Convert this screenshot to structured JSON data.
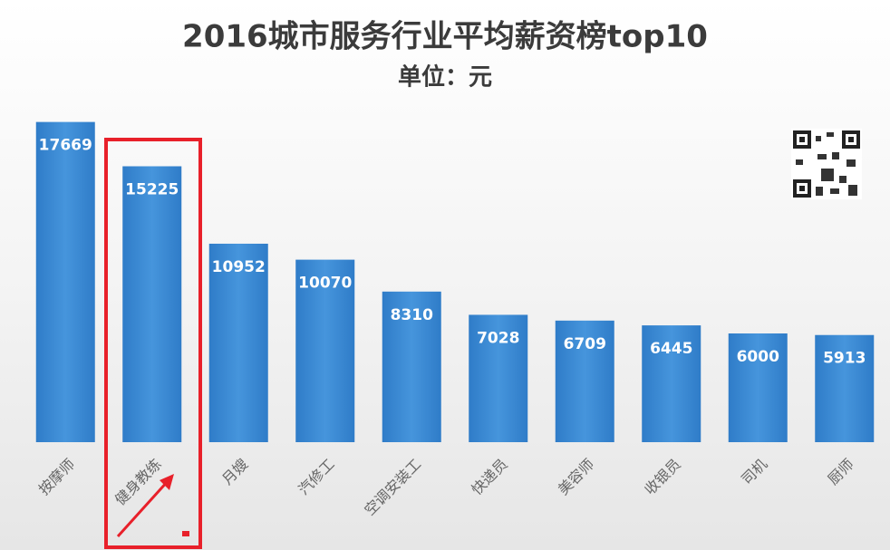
{
  "chart_data": {
    "type": "bar",
    "title": "2016城市服务行业平均薪资榜top10",
    "subtitle": "单位：元",
    "categories": [
      "按摩师",
      "健身教练",
      "月嫂",
      "汽修工",
      "空调安装工",
      "快递员",
      "美容师",
      "收银员",
      "司机",
      "厨师"
    ],
    "values": [
      17669,
      15225,
      10952,
      10070,
      8310,
      7028,
      6709,
      6445,
      6000,
      5913
    ],
    "color": "#3a88d2",
    "ylim": [
      0,
      20000
    ]
  }
}
